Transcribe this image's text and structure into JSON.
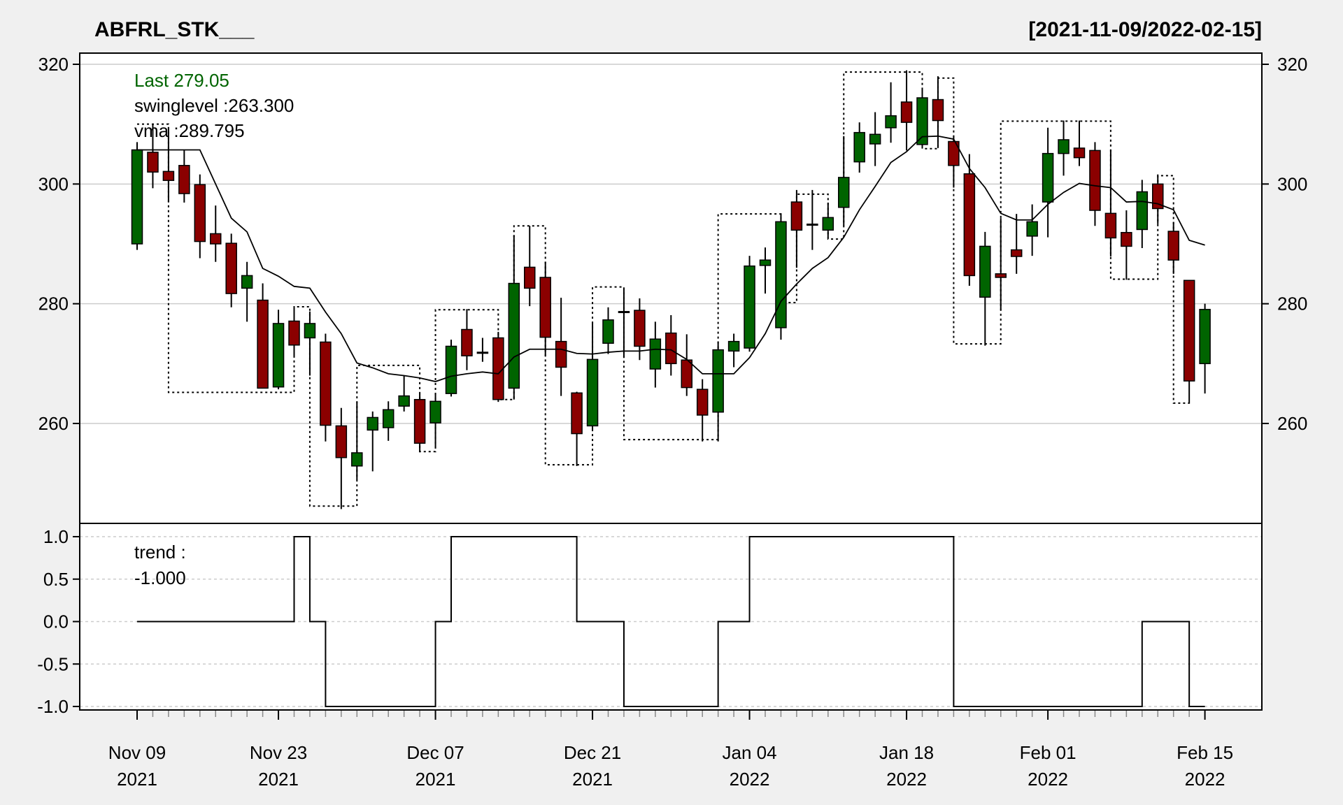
{
  "title": "ABFRL_STK___",
  "date_range": "[2021-11-09/2022-02-15]",
  "legend": {
    "last": "Last 279.05",
    "swinglevel": "swinglevel :263.300",
    "vma": "vma :289.795",
    "trend_label": "trend :",
    "trend_value": "-1.000"
  },
  "colors": {
    "up": "#006400",
    "down": "#8b0000",
    "last_text": "#006400",
    "background": "#f0f0f0",
    "grid": "#cccccc"
  },
  "chart_data": {
    "type": "candlestick",
    "main_panel": {
      "ylim": [
        243,
        322
      ],
      "yticks": [
        260,
        280,
        300,
        320
      ],
      "ytick_labels": [
        "260",
        "280",
        "300",
        "320"
      ],
      "grid": true,
      "candles_fields": [
        "date",
        "open",
        "high",
        "low",
        "close"
      ],
      "candles": [
        [
          "2021-11-09",
          290,
          307,
          289,
          305.7
        ],
        [
          "2021-11-10",
          305.3,
          310,
          299.3,
          302
        ],
        [
          "2021-11-11",
          302.1,
          309.5,
          297,
          300.6
        ],
        [
          "2021-11-12",
          303.1,
          305.7,
          296.9,
          298.4
        ],
        [
          "2021-11-15",
          299.9,
          301.6,
          287.6,
          290.4
        ],
        [
          "2021-11-16",
          291.7,
          296.4,
          287,
          290
        ],
        [
          "2021-11-17",
          290.1,
          291.7,
          279.4,
          281.7
        ],
        [
          "2021-11-18",
          282.6,
          287,
          277,
          284.7
        ],
        [
          "2021-11-22",
          280.6,
          283.4,
          266,
          265.9
        ],
        [
          "2021-11-23",
          266.1,
          279,
          265.7,
          276.7
        ],
        [
          "2021-11-24",
          277.1,
          279.6,
          271,
          273.1
        ],
        [
          "2021-11-25",
          274.3,
          278.7,
          268,
          276.7
        ],
        [
          "2021-11-26",
          273.6,
          275,
          257,
          259.7
        ],
        [
          "2021-11-29",
          259.6,
          262.6,
          245.7,
          254.3
        ],
        [
          "2021-11-30",
          252.9,
          263.6,
          250.6,
          255.1
        ],
        [
          "2021-12-01",
          258.9,
          262,
          252,
          261
        ],
        [
          "2021-12-02",
          259.3,
          263.7,
          257.1,
          262.3
        ],
        [
          "2021-12-03",
          262.9,
          268,
          262,
          264.6
        ],
        [
          "2021-12-06",
          264,
          265,
          255.2,
          256.7
        ],
        [
          "2021-12-07",
          260.1,
          265,
          256,
          263.7
        ],
        [
          "2021-12-08",
          265,
          274,
          264.5,
          272.9
        ],
        [
          "2021-12-09",
          275.7,
          279.1,
          268.9,
          271.3
        ],
        [
          "2021-12-10",
          271.9,
          274.3,
          270.3,
          271.9
        ],
        [
          "2021-12-13",
          274.3,
          275.3,
          263.6,
          264
        ],
        [
          "2021-12-14",
          265.9,
          291.4,
          264,
          283.4
        ],
        [
          "2021-12-15",
          286.1,
          293,
          279.6,
          282.6
        ],
        [
          "2021-12-16",
          284.4,
          287,
          271.3,
          274.4
        ],
        [
          "2021-12-17",
          273.7,
          281,
          264.6,
          269.4
        ],
        [
          "2021-12-20",
          265.1,
          265.3,
          252.9,
          258.3
        ],
        [
          "2021-12-21",
          259.6,
          276.9,
          259,
          270.7
        ],
        [
          "2021-12-22",
          273.4,
          279.4,
          271.6,
          277.3
        ],
        [
          "2021-12-23",
          278.7,
          282.6,
          271,
          278.7
        ],
        [
          "2021-12-24",
          278.9,
          280.9,
          270.6,
          272.9
        ],
        [
          "2021-12-27",
          269.1,
          277,
          266,
          274.1
        ],
        [
          "2021-12-28",
          275.1,
          278.1,
          268,
          270
        ],
        [
          "2021-12-29",
          270.6,
          274.9,
          264.6,
          266
        ],
        [
          "2021-12-30",
          265.7,
          267.4,
          257,
          261.4
        ],
        [
          "2021-12-31",
          261.9,
          273.7,
          257,
          272.3
        ],
        [
          "2022-01-03",
          272.1,
          275,
          269.4,
          273.7
        ],
        [
          "2022-01-04",
          272.6,
          288,
          272,
          286.3
        ],
        [
          "2022-01-05",
          286.4,
          289.4,
          281.7,
          287.3
        ],
        [
          "2022-01-06",
          276,
          295,
          274,
          293.7
        ],
        [
          "2022-01-07",
          297,
          299,
          286,
          292.3
        ],
        [
          "2022-01-10",
          293.3,
          299,
          289,
          293.3
        ],
        [
          "2022-01-11",
          292.3,
          296.9,
          291,
          294.4
        ],
        [
          "2022-01-12",
          296.1,
          308,
          293,
          301.1
        ],
        [
          "2022-01-13",
          303.7,
          310.3,
          301.9,
          308.6
        ],
        [
          "2022-01-14",
          306.7,
          312,
          303,
          308.3
        ],
        [
          "2022-01-17",
          309.4,
          317,
          306.9,
          311.4
        ],
        [
          "2022-01-18",
          313.7,
          319,
          305.6,
          310.3
        ],
        [
          "2022-01-19",
          306.6,
          316.1,
          306,
          314.4
        ],
        [
          "2022-01-20",
          314.1,
          318,
          306,
          310.6
        ],
        [
          "2022-01-21",
          307.1,
          308,
          299.4,
          303.1
        ],
        [
          "2022-01-24",
          301.7,
          305,
          283,
          284.7
        ],
        [
          "2022-01-25",
          281.1,
          292,
          273,
          289.6
        ],
        [
          "2022-01-27",
          285,
          294.3,
          279,
          284.4
        ],
        [
          "2022-01-28",
          289,
          295,
          285,
          287.9
        ],
        [
          "2022-01-31",
          291.3,
          296.6,
          288,
          293.7
        ],
        [
          "2022-02-01",
          297,
          309.4,
          291.1,
          305.1
        ],
        [
          "2022-02-02",
          305.1,
          310.6,
          301.4,
          307.4
        ],
        [
          "2022-02-03",
          306,
          310.6,
          303,
          304.4
        ],
        [
          "2022-02-04",
          305.6,
          307,
          293,
          295.6
        ],
        [
          "2022-02-07",
          295.1,
          305.7,
          287.9,
          291
        ],
        [
          "2022-02-08",
          291.9,
          295.6,
          284,
          289.6
        ],
        [
          "2022-02-09",
          292.4,
          300.7,
          289.3,
          298.7
        ],
        [
          "2022-02-10",
          300,
          301.6,
          293.3,
          295.9
        ],
        [
          "2022-02-11",
          292.1,
          293.6,
          285,
          287.3
        ],
        [
          "2022-02-14",
          283.9,
          283.9,
          263.3,
          267.1
        ],
        [
          "2022-02-15",
          270,
          280,
          265,
          279.05
        ]
      ],
      "vma": [
        305.7,
        305.7,
        305.7,
        305.7,
        305.7,
        300,
        294.3,
        292,
        285.9,
        284.6,
        282.9,
        282.6,
        278.6,
        275,
        270.1,
        269.3,
        268.3,
        268,
        267.6,
        267,
        267.9,
        268.3,
        268.6,
        268.3,
        271.1,
        272.4,
        272.4,
        272.4,
        271.7,
        271.6,
        271.9,
        272.1,
        272.1,
        272.4,
        272.3,
        270.7,
        268.3,
        268.3,
        268.3,
        271,
        275,
        280.4,
        283.3,
        285.9,
        287.7,
        291.1,
        295.7,
        299.6,
        303.6,
        305.4,
        307.9,
        308,
        307.5,
        302.6,
        299.4,
        295.1,
        294,
        294,
        296.6,
        298.6,
        300.1,
        299.7,
        299.4,
        297,
        297.1,
        296.7,
        295.7,
        290.6,
        289.8
      ],
      "swing_levels_fields": [
        "from_date",
        "to_date",
        "level"
      ],
      "swing_levels": [
        [
          "2021-11-09",
          "2021-11-11",
          310.0
        ],
        [
          "2021-11-11",
          "2021-11-24",
          265.2
        ],
        [
          "2021-11-24",
          "2021-11-25",
          279.5
        ],
        [
          "2021-11-25",
          "2021-11-30",
          246.2
        ],
        [
          "2021-11-30",
          "2021-12-06",
          269.7
        ],
        [
          "2021-12-06",
          "2021-12-07",
          255.3
        ],
        [
          "2021-12-07",
          "2021-12-13",
          279.0
        ],
        [
          "2021-12-13",
          "2021-12-14",
          264.0
        ],
        [
          "2021-12-14",
          "2021-12-16",
          293.0
        ],
        [
          "2021-12-16",
          "2021-12-21",
          253.1
        ],
        [
          "2021-12-21",
          "2021-12-23",
          282.8
        ],
        [
          "2021-12-23",
          "2021-12-31",
          257.3
        ],
        [
          "2021-12-31",
          "2022-01-06",
          295.0
        ],
        [
          "2022-01-06",
          "2022-01-07",
          280.2
        ],
        [
          "2022-01-07",
          "2022-01-11",
          298.3
        ],
        [
          "2022-01-11",
          "2022-01-12",
          290.8
        ],
        [
          "2022-01-12",
          "2022-01-19",
          318.7
        ],
        [
          "2022-01-19",
          "2022-01-20",
          305.9
        ],
        [
          "2022-01-20",
          "2022-01-21",
          317.7
        ],
        [
          "2022-01-21",
          "2022-01-27",
          273.3
        ],
        [
          "2022-01-27",
          "2022-02-07",
          310.5
        ],
        [
          "2022-02-07",
          "2022-02-10",
          284.1
        ],
        [
          "2022-02-10",
          "2022-02-11",
          301.4
        ],
        [
          "2022-02-11",
          "2022-02-14",
          263.4
        ]
      ]
    },
    "trend_panel": {
      "ylim": [
        -1.05,
        1.05
      ],
      "yticks": [
        1.0,
        0.5,
        0.0,
        -0.5,
        -1.0
      ],
      "ytick_labels": [
        "1.0",
        "0.5",
        "0.0",
        "-0.5",
        "-1.0"
      ],
      "grid": true,
      "values": [
        0,
        0,
        0,
        0,
        0,
        0,
        0,
        0,
        0,
        0,
        1,
        0,
        -1,
        -1,
        -1,
        -1,
        -1,
        -1,
        -1,
        0,
        1,
        1,
        1,
        1,
        1,
        1,
        1,
        1,
        0,
        0,
        0,
        -1,
        -1,
        -1,
        -1,
        -1,
        -1,
        0,
        0,
        1,
        1,
        1,
        1,
        1,
        1,
        1,
        1,
        1,
        1,
        1,
        1,
        1,
        -1,
        -1,
        -1,
        -1,
        -1,
        -1,
        -1,
        -1,
        -1,
        -1,
        -1,
        -1,
        0,
        0,
        0,
        -1,
        -1
      ]
    },
    "xticks": [
      {
        "date": "2021-11-09",
        "label1": "Nov 09",
        "label2": "2021"
      },
      {
        "date": "2021-11-23",
        "label1": "Nov 23",
        "label2": "2021"
      },
      {
        "date": "2021-12-07",
        "label1": "Dec 07",
        "label2": "2021"
      },
      {
        "date": "2021-12-21",
        "label1": "Dec 21",
        "label2": "2021"
      },
      {
        "date": "2022-01-04",
        "label1": "Jan 04",
        "label2": "2022"
      },
      {
        "date": "2022-01-18",
        "label1": "Jan 18",
        "label2": "2022"
      },
      {
        "date": "2022-02-01",
        "label1": "Feb 01",
        "label2": "2022"
      },
      {
        "date": "2022-02-15",
        "label1": "Feb 15",
        "label2": "2022"
      }
    ]
  }
}
